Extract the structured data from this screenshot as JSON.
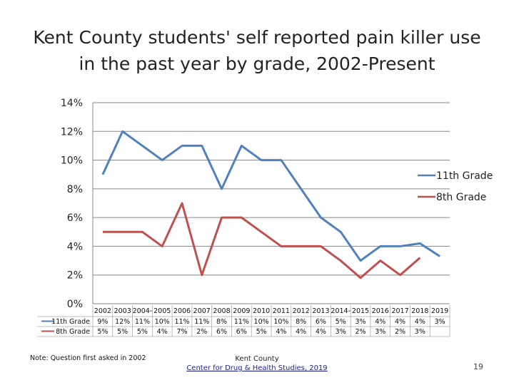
{
  "title": {
    "line1": "Kent County students' self reported pain killer use",
    "line2": "in the past year by grade, 2002-Present"
  },
  "footer": {
    "note": "Note: Question first asked in 2002",
    "org_line1": "Kent County",
    "org_line2": "Center for Drug & Health Studies, 2019",
    "page_number": "19"
  },
  "colors": {
    "series_11th": "#4f81bd",
    "series_8th": "#c0504d",
    "grid": "#868686"
  },
  "chart_data": {
    "type": "line",
    "title": "Kent County students' self reported pain killer use in the past year by grade, 2002-Present",
    "xlabel": "",
    "ylabel": "",
    "ylim": [
      0,
      14
    ],
    "yticks": [
      "0%",
      "2%",
      "4%",
      "6%",
      "8%",
      "10%",
      "12%",
      "14%"
    ],
    "y_tick_values": [
      0,
      2,
      4,
      6,
      8,
      10,
      12,
      14
    ],
    "grid": true,
    "legend_position": "right",
    "categories": [
      "2002",
      "2003",
      "2004",
      "2005",
      "2006",
      "2007",
      "2008",
      "2009",
      "2010",
      "2011",
      "2012",
      "2013",
      "2014",
      "2015",
      "2016",
      "2017",
      "2018",
      "2019"
    ],
    "category_labels": [
      "2002",
      "2003",
      "2004-",
      "2005",
      "2006",
      "2007",
      "2008",
      "2009",
      "2010",
      "2011",
      "2012",
      "2013",
      "2014-",
      "2015",
      "2016",
      "2017",
      "2018",
      "2019"
    ],
    "series": [
      {
        "name": "11th Grade",
        "color": "#4f81bd",
        "values": [
          9,
          12,
          11,
          10,
          11,
          11,
          8,
          11,
          10,
          10,
          8,
          6,
          5,
          3,
          4,
          4,
          4.2,
          3.3
        ],
        "labels": [
          "9%",
          "12%",
          "11%",
          "10%",
          "11%",
          "11%",
          "8%",
          "11%",
          "10%",
          "10%",
          "8%",
          "6%",
          "5%",
          "3%",
          "4%",
          "4%",
          "4%",
          "3%"
        ]
      },
      {
        "name": "8th Grade",
        "color": "#c0504d",
        "values": [
          5,
          5,
          5,
          4,
          7,
          2,
          6,
          6,
          5,
          4,
          4,
          4,
          3,
          1.8,
          3,
          2,
          3.2,
          null
        ],
        "labels": [
          "5%",
          "5%",
          "5%",
          "4%",
          "7%",
          "2%",
          "6%",
          "6%",
          "5%",
          "4%",
          "4%",
          "4%",
          "3%",
          "2%",
          "3%",
          "2%",
          "3%",
          ""
        ]
      }
    ]
  }
}
